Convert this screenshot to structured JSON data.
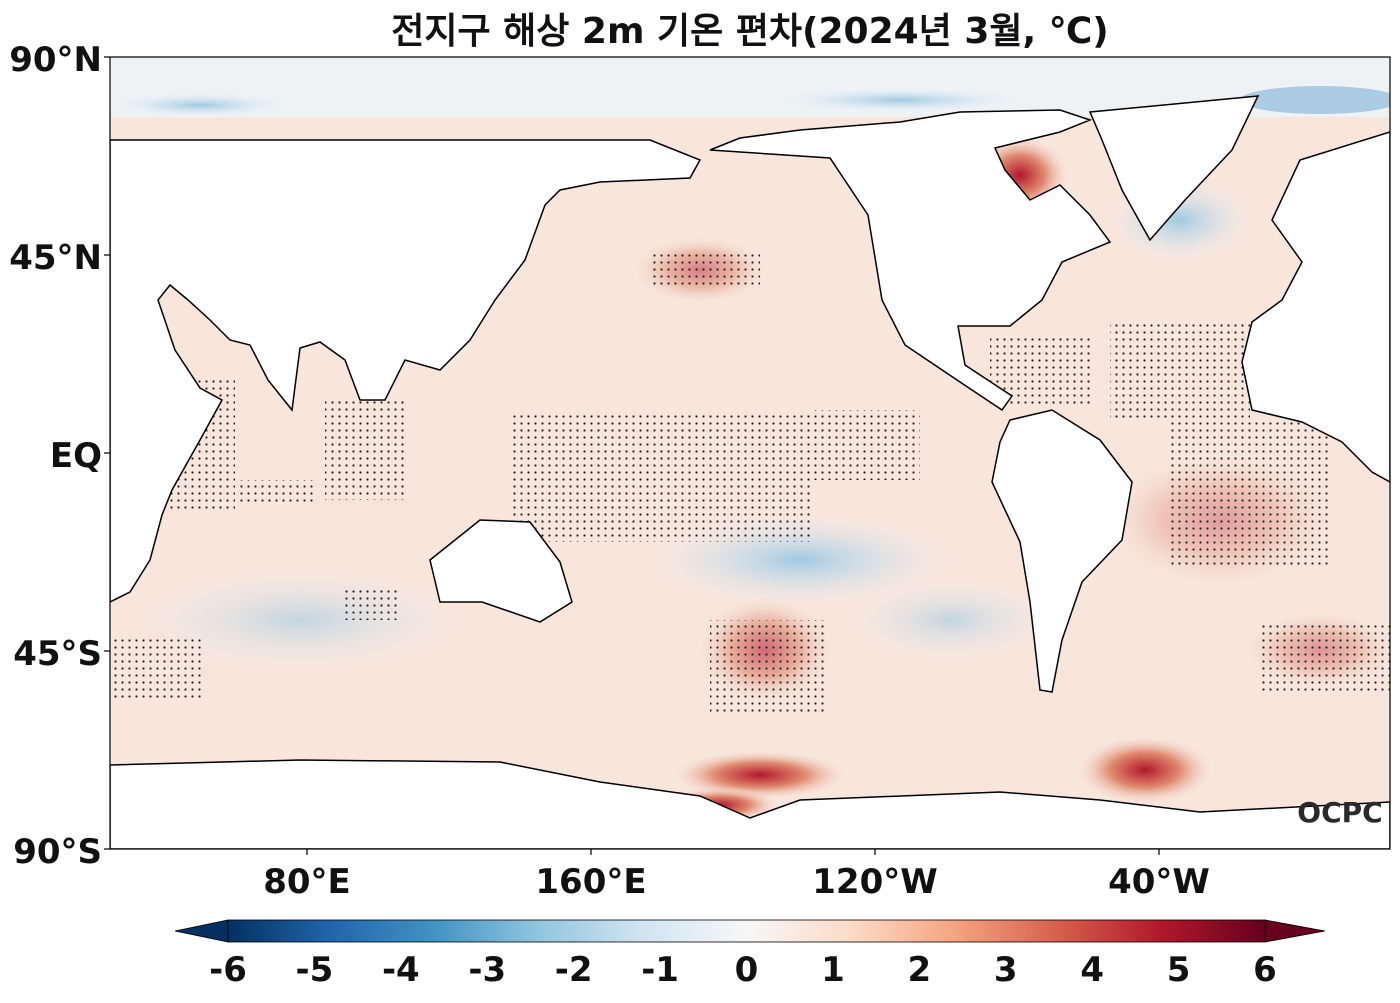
{
  "title": "전지구 해상 2m 기온 편차(2024년 3월, ℃)",
  "lat_labels": [
    "90°N",
    "45°N",
    "EQ",
    "45°S",
    "90°S"
  ],
  "lon_labels": [
    "80°E",
    "160°E",
    "120°W",
    "40°W"
  ],
  "colorbar": {
    "ticks": [
      "-6",
      "-5",
      "-4",
      "-3",
      "-2",
      "-1",
      "0",
      "1",
      "2",
      "3",
      "4",
      "5",
      "6"
    ],
    "min": -6,
    "max": 6,
    "extend": "both",
    "colors": [
      "#053061",
      "#2166ac",
      "#4393c3",
      "#92c5de",
      "#d1e5f0",
      "#f7f7f7",
      "#fddbc7",
      "#f4a582",
      "#d6604d",
      "#b2182b",
      "#67001f"
    ]
  },
  "logo": "OCPC"
}
